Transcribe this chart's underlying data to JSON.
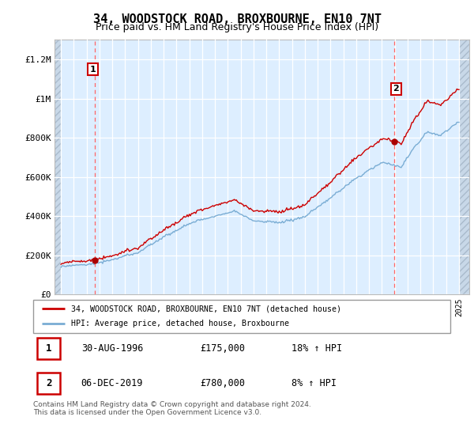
{
  "title": "34, WOODSTOCK ROAD, BROXBOURNE, EN10 7NT",
  "subtitle": "Price paid vs. HM Land Registry's House Price Index (HPI)",
  "ylim": [
    0,
    1300000
  ],
  "yticks": [
    0,
    200000,
    400000,
    600000,
    800000,
    1000000,
    1200000
  ],
  "ytick_labels": [
    "£0",
    "£200K",
    "£400K",
    "£600K",
    "£800K",
    "£1M",
    "£1.2M"
  ],
  "sale1_year": 1996,
  "sale1_month": 8,
  "sale1_price": 175000,
  "sale2_year": 2019,
  "sale2_month": 12,
  "sale2_price": 780000,
  "hpi_color": "#7aadd4",
  "price_color": "#cc0000",
  "vline_color": "#ff6666",
  "dot_color": "#aa0000",
  "background_plot": "#ddeeff",
  "grid_color": "#ffffff",
  "hatch_color": "#c8d8e8",
  "title_fontsize": 11,
  "subtitle_fontsize": 9,
  "tick_fontsize": 8,
  "legend_label_price": "34, WOODSTOCK ROAD, BROXBOURNE, EN10 7NT (detached house)",
  "legend_label_hpi": "HPI: Average price, detached house, Broxbourne",
  "table_row1": [
    "1",
    "30-AUG-1996",
    "£175,000",
    "18% ↑ HPI"
  ],
  "table_row2": [
    "2",
    "06-DEC-2019",
    "£780,000",
    "8% ↑ HPI"
  ],
  "footer": "Contains HM Land Registry data © Crown copyright and database right 2024.\nThis data is licensed under the Open Government Licence v3.0.",
  "xmin": 1993.5,
  "xmax": 2025.8,
  "hatch_left_end": 1994.0,
  "hatch_right_start": 2025.0
}
